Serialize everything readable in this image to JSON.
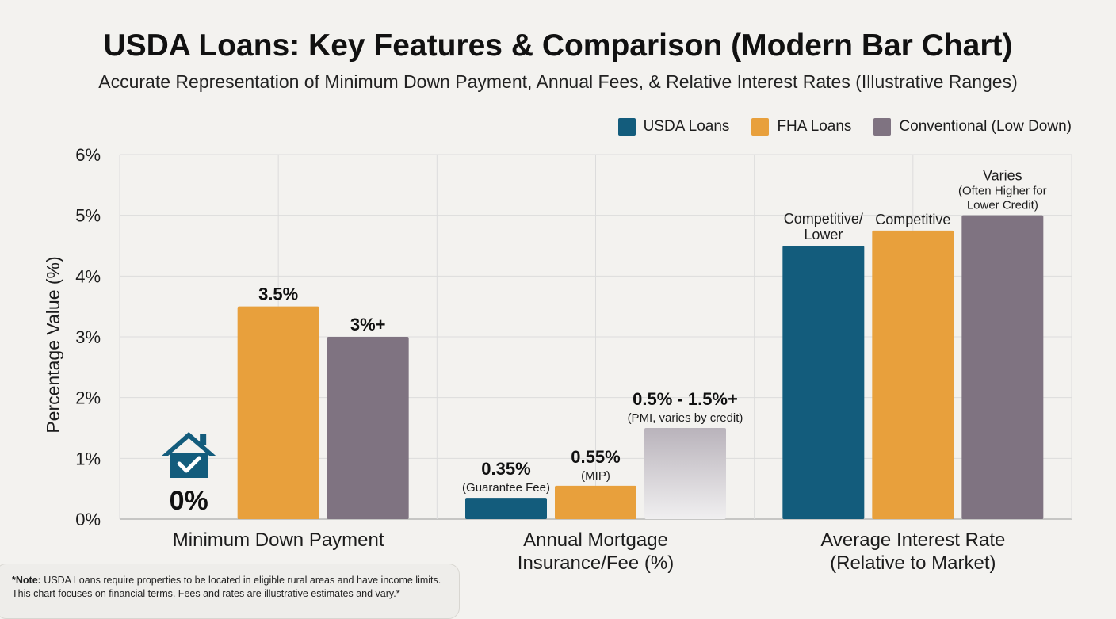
{
  "chart_data": {
    "type": "bar",
    "title": "USDA Loans: Key Features & Comparison (Modern Bar Chart)",
    "subtitle": "Accurate Representation of Minimum Down Payment, Annual Fees, & Relative Interest Rates (Illustrative Ranges)",
    "ylabel": "Percentage Value (%)",
    "ylim": [
      0,
      6
    ],
    "yticks": [
      "0%",
      "1%",
      "2%",
      "3%",
      "4%",
      "5%",
      "6%"
    ],
    "grid": true,
    "legend_position": "top-right",
    "categories": [
      [
        "Minimum Down Payment"
      ],
      [
        "Annual Mortgage",
        "Insurance/Fee (%)"
      ],
      [
        "Average Interest Rate",
        "(Relative to Market)"
      ]
    ],
    "series": [
      {
        "name": "USDA Loans",
        "color": "#135c7c",
        "values": [
          0,
          0.35,
          4.5
        ],
        "labels": [
          {
            "main": "0%",
            "sub": []
          },
          {
            "main": "0.35%",
            "sub": [
              "(Guarantee Fee)"
            ]
          },
          {
            "main": "",
            "sub": [
              "Competitive/",
              "Lower"
            ]
          }
        ]
      },
      {
        "name": "FHA Loans",
        "color": "#e8a03c",
        "values": [
          3.5,
          0.55,
          4.75
        ],
        "labels": [
          {
            "main": "3.5%",
            "sub": []
          },
          {
            "main": "0.55%",
            "sub": [
              "(MIP)"
            ]
          },
          {
            "main": "",
            "sub": [
              "Competitive"
            ]
          }
        ]
      },
      {
        "name": "Conventional (Low Down)",
        "color": "#7f7381",
        "values": [
          3.0,
          1.5,
          5.0
        ],
        "labels": [
          {
            "main": "3%+",
            "sub": []
          },
          {
            "main": "0.5% - 1.5%+",
            "sub": [
              "(PMI, varies by credit)"
            ]
          },
          {
            "main": "",
            "sub": [
              "Varies",
              "(Often Higher for",
              "Lower Credit)"
            ]
          }
        ]
      }
    ]
  },
  "icons": {
    "usda_zero_marker": "house-check-icon"
  },
  "note": {
    "bold": "*Note:",
    "text": " USDA Loans require properties to be located in eligible rural areas and have income limits. This chart focuses on financial terms. Fees and rates are illustrative estimates and vary.*"
  }
}
